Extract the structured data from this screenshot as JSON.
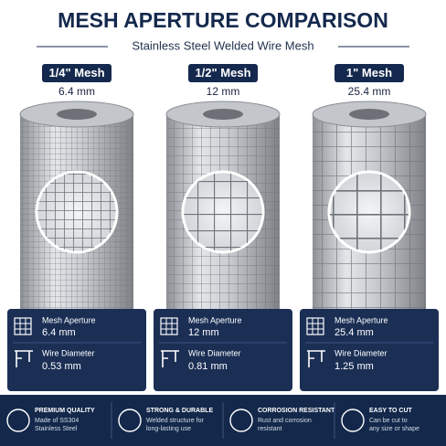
{
  "header": {
    "title": "MESH APERTURE COMPARISON",
    "subtitle": "Stainless Steel Welded Wire Mesh"
  },
  "products": [
    {
      "name": "1/4\" Mesh",
      "size": "6.4 mm",
      "aperture_label": "Mesh Aperture",
      "aperture": "6.4 mm",
      "wire_label": "Wire Diameter",
      "wire": "0.53 mm"
    },
    {
      "name": "1/2\" Mesh",
      "size": "12 mm",
      "aperture_label": "Mesh Aperture",
      "aperture": "12 mm",
      "wire_label": "Wire Diameter",
      "wire": "0.81 mm"
    },
    {
      "name": "1\" Mesh",
      "size": "25.4 mm",
      "aperture_label": "Mesh Aperture",
      "aperture": "25.4 mm",
      "wire_label": "Wire Diameter",
      "wire": "1.25 mm"
    }
  ],
  "features": [
    {
      "title": "PREMIUM QUALITY",
      "lines": [
        "Made of SS304",
        "Stainless Steel"
      ]
    },
    {
      "title": "STRONG & DURABLE",
      "lines": [
        "Welded structure for",
        "long-lasting use"
      ]
    },
    {
      "title": "CORROSION RESISTANT",
      "lines": [
        "Rust and corrosion",
        "resistant"
      ]
    },
    {
      "title": "EASY TO CUT",
      "lines": [
        "Can be cut to",
        "any size or shape"
      ]
    }
  ]
}
